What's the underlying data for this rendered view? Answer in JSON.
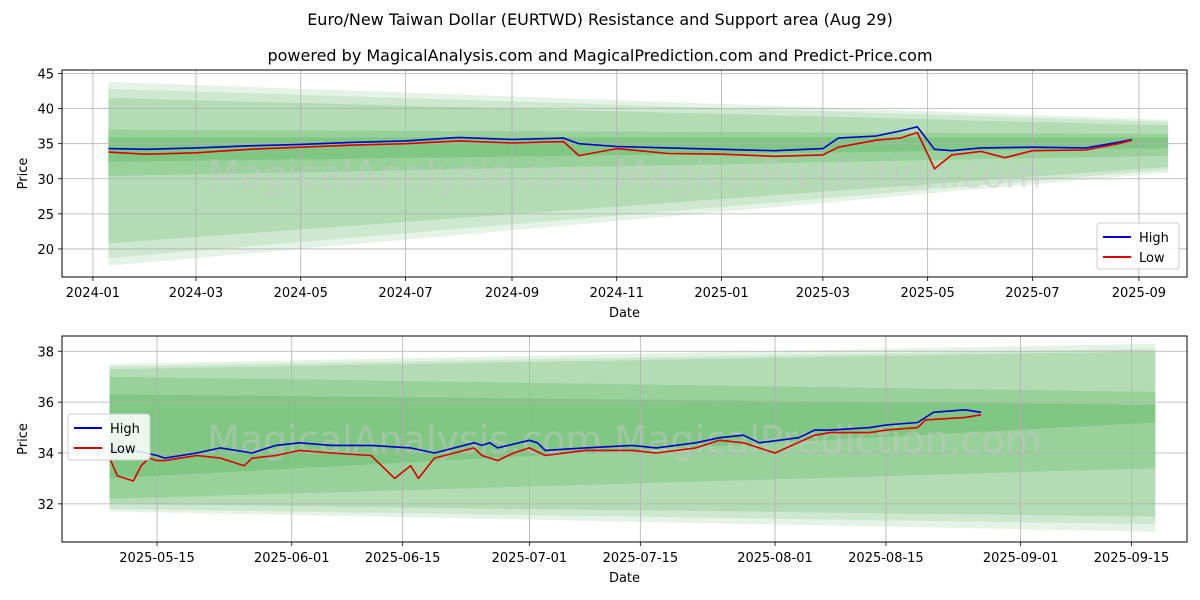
{
  "title": "Euro/New Taiwan Dollar (EURTWD) Resistance and Support area (Aug 29)",
  "subtitle": "powered by MagicalAnalysis.com and MagicalPrediction.com and Predict-Price.com",
  "watermark": "MagicalAnalysis.com    MagicalPrediction.com",
  "colors": {
    "high": "#0000cc",
    "low": "#dd0000",
    "band": "#4caf50"
  },
  "chart_data": [
    {
      "type": "line",
      "xlabel": "Date",
      "ylabel": "Price",
      "ylim": [
        16,
        45.5
      ],
      "xlim": [
        "2023-12-14",
        "2025-09-29"
      ],
      "grid": true,
      "legend": "bottom-right",
      "x_ticks": [
        "2024-01",
        "2024-03",
        "2024-05",
        "2024-07",
        "2024-09",
        "2024-11",
        "2025-01",
        "2025-03",
        "2025-05",
        "2025-07",
        "2025-09"
      ],
      "y_ticks": [
        20,
        25,
        30,
        35,
        40,
        45
      ],
      "series": [
        {
          "name": "High",
          "x": [
            "2024-01-10",
            "2024-02-01",
            "2024-03-01",
            "2024-04-01",
            "2024-05-01",
            "2024-06-01",
            "2024-07-01",
            "2024-08-01",
            "2024-09-01",
            "2024-10-01",
            "2024-10-10",
            "2024-11-01",
            "2024-12-01",
            "2025-01-01",
            "2025-02-01",
            "2025-03-01",
            "2025-03-10",
            "2025-04-01",
            "2025-04-15",
            "2025-04-25",
            "2025-05-05",
            "2025-05-15",
            "2025-06-01",
            "2025-07-01",
            "2025-08-01",
            "2025-08-20",
            "2025-08-28"
          ],
          "values": [
            34.3,
            34.2,
            34.4,
            34.7,
            34.9,
            35.2,
            35.4,
            35.9,
            35.6,
            35.8,
            35.0,
            34.6,
            34.4,
            34.2,
            34.0,
            34.3,
            35.8,
            36.1,
            36.8,
            37.4,
            34.2,
            34.0,
            34.4,
            34.5,
            34.4,
            35.2,
            35.6
          ]
        },
        {
          "name": "Low",
          "x": [
            "2024-01-10",
            "2024-02-01",
            "2024-03-01",
            "2024-04-01",
            "2024-05-01",
            "2024-06-01",
            "2024-07-01",
            "2024-08-01",
            "2024-09-01",
            "2024-10-01",
            "2024-10-10",
            "2024-11-01",
            "2024-12-01",
            "2025-01-01",
            "2025-02-01",
            "2025-03-01",
            "2025-03-10",
            "2025-04-01",
            "2025-04-15",
            "2025-04-25",
            "2025-05-02",
            "2025-05-05",
            "2025-05-15",
            "2025-06-01",
            "2025-06-15",
            "2025-07-01",
            "2025-08-01",
            "2025-08-20",
            "2025-08-28"
          ],
          "values": [
            33.8,
            33.5,
            33.7,
            34.2,
            34.5,
            34.8,
            35.0,
            35.4,
            35.1,
            35.3,
            33.3,
            34.3,
            33.6,
            33.5,
            33.2,
            33.4,
            34.5,
            35.5,
            35.8,
            36.6,
            33.0,
            31.4,
            33.4,
            33.9,
            33.0,
            34.0,
            34.1,
            35.0,
            35.5
          ]
        }
      ],
      "bands": [
        {
          "start": "2024-01-10",
          "end": "2025-09-18",
          "upper": [
            43.8,
            38.4
          ],
          "lower": [
            17.6,
            30.9
          ]
        },
        {
          "start": "2024-01-10",
          "end": "2025-09-18",
          "upper": [
            42.8,
            38.1
          ],
          "lower": [
            18.7,
            31.3
          ]
        },
        {
          "start": "2024-01-10",
          "end": "2025-09-18",
          "upper": [
            41.5,
            37.6
          ],
          "lower": [
            20.8,
            31.7
          ]
        },
        {
          "start": "2024-01-10",
          "end": "2025-09-18",
          "upper": [
            37.0,
            36.4
          ],
          "lower": [
            30.4,
            33.3
          ]
        },
        {
          "start": "2024-01-10",
          "end": "2025-09-18",
          "upper": [
            35.9,
            35.9
          ],
          "lower": [
            32.4,
            34.4
          ]
        }
      ]
    },
    {
      "type": "line",
      "xlabel": "Date",
      "ylabel": "Price",
      "ylim": [
        30.5,
        38.6
      ],
      "xlim": [
        "2025-05-03",
        "2025-09-22"
      ],
      "grid": true,
      "legend": "left",
      "x_ticks": [
        "2025-05-15",
        "2025-06-01",
        "2025-06-15",
        "2025-07-01",
        "2025-07-15",
        "2025-08-01",
        "2025-08-15",
        "2025-09-01",
        "2025-09-15"
      ],
      "y_ticks": [
        32,
        34,
        36,
        38
      ],
      "series": [
        {
          "name": "High",
          "x": [
            "2025-05-09",
            "2025-05-12",
            "2025-05-15",
            "2025-05-16",
            "2025-05-20",
            "2025-05-23",
            "2025-05-27",
            "2025-05-30",
            "2025-06-02",
            "2025-06-06",
            "2025-06-11",
            "2025-06-16",
            "2025-06-19",
            "2025-06-24",
            "2025-06-25",
            "2025-06-26",
            "2025-06-27",
            "2025-07-01",
            "2025-07-02",
            "2025-07-03",
            "2025-07-08",
            "2025-07-14",
            "2025-07-17",
            "2025-07-22",
            "2025-07-25",
            "2025-07-28",
            "2025-07-30",
            "2025-08-04",
            "2025-08-06",
            "2025-08-08",
            "2025-08-13",
            "2025-08-15",
            "2025-08-19",
            "2025-08-21",
            "2025-08-25",
            "2025-08-27"
          ],
          "values": [
            34.1,
            34.1,
            33.9,
            33.8,
            34.0,
            34.2,
            34.0,
            34.3,
            34.4,
            34.3,
            34.3,
            34.2,
            34.0,
            34.4,
            34.3,
            34.4,
            34.2,
            34.5,
            34.4,
            34.1,
            34.2,
            34.3,
            34.2,
            34.4,
            34.6,
            34.7,
            34.4,
            34.6,
            34.9,
            34.9,
            35.0,
            35.1,
            35.2,
            35.6,
            35.7,
            35.6
          ]
        },
        {
          "name": "Low",
          "x": [
            "2025-05-09",
            "2025-05-10",
            "2025-05-12",
            "2025-05-13",
            "2025-05-14",
            "2025-05-15",
            "2025-05-16",
            "2025-05-20",
            "2025-05-23",
            "2025-05-26",
            "2025-05-27",
            "2025-05-30",
            "2025-06-02",
            "2025-06-06",
            "2025-06-11",
            "2025-06-14",
            "2025-06-16",
            "2025-06-17",
            "2025-06-19",
            "2025-06-24",
            "2025-06-25",
            "2025-06-27",
            "2025-06-29",
            "2025-07-01",
            "2025-07-03",
            "2025-07-08",
            "2025-07-14",
            "2025-07-17",
            "2025-07-22",
            "2025-07-25",
            "2025-07-28",
            "2025-08-01",
            "2025-08-06",
            "2025-08-08",
            "2025-08-13",
            "2025-08-15",
            "2025-08-19",
            "2025-08-20",
            "2025-08-25",
            "2025-08-27"
          ],
          "values": [
            33.8,
            33.1,
            32.9,
            33.5,
            33.8,
            33.7,
            33.7,
            33.9,
            33.8,
            33.5,
            33.8,
            33.9,
            34.1,
            34.0,
            33.9,
            33.0,
            33.5,
            33.0,
            33.8,
            34.2,
            33.9,
            33.7,
            34.0,
            34.2,
            33.9,
            34.1,
            34.1,
            34.0,
            34.2,
            34.5,
            34.4,
            34.0,
            34.7,
            34.8,
            34.8,
            34.9,
            35.0,
            35.3,
            35.4,
            35.5
          ]
        }
      ],
      "bands": [
        {
          "start": "2025-05-09",
          "end": "2025-09-18",
          "upper": [
            37.5,
            38.3
          ],
          "lower": [
            31.7,
            30.9
          ]
        },
        {
          "start": "2025-05-09",
          "end": "2025-09-18",
          "upper": [
            37.4,
            38.1
          ],
          "lower": [
            31.8,
            31.2
          ]
        },
        {
          "start": "2025-05-09",
          "end": "2025-09-18",
          "upper": [
            37.3,
            38.0
          ],
          "lower": [
            32.0,
            31.5
          ]
        },
        {
          "start": "2025-05-09",
          "end": "2025-09-18",
          "upper": [
            37.0,
            36.4
          ],
          "lower": [
            32.2,
            33.4
          ]
        },
        {
          "start": "2025-05-09",
          "end": "2025-09-18",
          "upper": [
            36.3,
            35.9
          ],
          "lower": [
            33.0,
            35.2
          ]
        }
      ]
    }
  ]
}
